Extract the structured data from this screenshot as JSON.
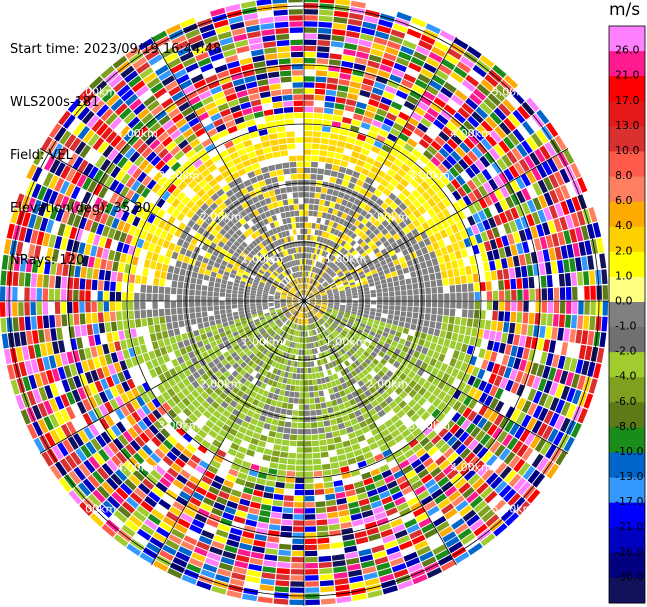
{
  "info": {
    "start_time": "Start time: 2023/09/19 16:44:48",
    "instrument": "WLS200s-181",
    "field": "Field: VEL",
    "elevation": "Elevation(deg): 35.30",
    "nrays": "NRays: 120"
  },
  "chart_data": {
    "type": "heatmap",
    "projection": "polar PPI",
    "field": "VEL",
    "units": "m/s",
    "n_rays": 120,
    "range_ring_labels": [
      "1.00km",
      "2.00km",
      "3.00km",
      "4.00km",
      "5.00km"
    ],
    "colorbar": {
      "title": "m/s",
      "ticks": [
        "26.0",
        "21.0",
        "17.0",
        "13.0",
        "10.0",
        "8.0",
        "6.0",
        "4.0",
        "2.0",
        "1.0",
        "0.0",
        "-1.0",
        "-2.0",
        "-4.0",
        "-6.0",
        "-8.0",
        "-10.0",
        "-13.0",
        "-17.0",
        "-21.0",
        "-26.0",
        "-30.0"
      ],
      "colors": [
        "#ff80ff",
        "#ff1a90",
        "#ff0000",
        "#e61919",
        "#d93030",
        "#ff5a4a",
        "#ff8060",
        "#ffaa00",
        "#ffd000",
        "#ffff00",
        "#ffff80",
        "#808080",
        "#707070",
        "#a0cc30",
        "#80a020",
        "#5c7a18",
        "#1a8c1a",
        "#0066cc",
        "#3399ff",
        "#0000ff",
        "#0000c0",
        "#000080",
        "#12125c"
      ]
    }
  }
}
